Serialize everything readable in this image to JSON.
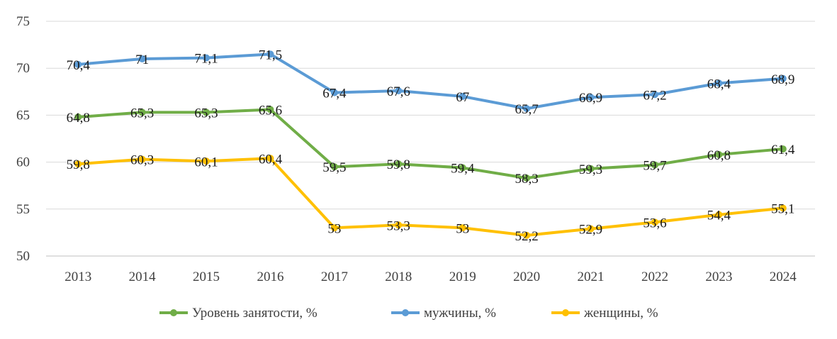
{
  "chart_data": {
    "type": "line",
    "categories": [
      "2013",
      "2014",
      "2015",
      "2016",
      "2017",
      "2018",
      "2019",
      "2020",
      "2021",
      "2022",
      "2023",
      "2024"
    ],
    "series": [
      {
        "name": "Уровень занятости, %",
        "color": "#70ad47",
        "values": [
          64.8,
          65.3,
          65.3,
          65.6,
          59.5,
          59.8,
          59.4,
          58.3,
          59.3,
          59.7,
          60.8,
          61.4
        ],
        "labels": [
          "64,8",
          "65,3",
          "65,3",
          "65,6",
          "59,5",
          "59,8",
          "59,4",
          "58,3",
          "59,3",
          "59,7",
          "60,8",
          "61,4"
        ]
      },
      {
        "name": "мужчины, %",
        "color": "#5b9bd5",
        "values": [
          70.4,
          71,
          71.1,
          71.5,
          67.4,
          67.6,
          67,
          65.7,
          66.9,
          67.2,
          68.4,
          68.9
        ],
        "labels": [
          "70,4",
          "71",
          "71,1",
          "71,5",
          "67,4",
          "67,6",
          "67",
          "65,7",
          "66,9",
          "67,2",
          "68,4",
          "68,9"
        ]
      },
      {
        "name": "женщины, %",
        "color": "#ffc000",
        "values": [
          59.8,
          60.3,
          60.1,
          60.4,
          53,
          53.3,
          53,
          52.2,
          52.9,
          53.6,
          54.4,
          55.1
        ],
        "labels": [
          "59,8",
          "60,3",
          "60,1",
          "60,4",
          "53",
          "53,3",
          "53",
          "52,2",
          "52,9",
          "53,6",
          "54,4",
          "55,1"
        ]
      }
    ],
    "ylim": [
      50,
      75
    ],
    "yticks": [
      "50",
      "55",
      "60",
      "65",
      "70",
      "75"
    ],
    "grid": true,
    "legend": "bottom"
  }
}
